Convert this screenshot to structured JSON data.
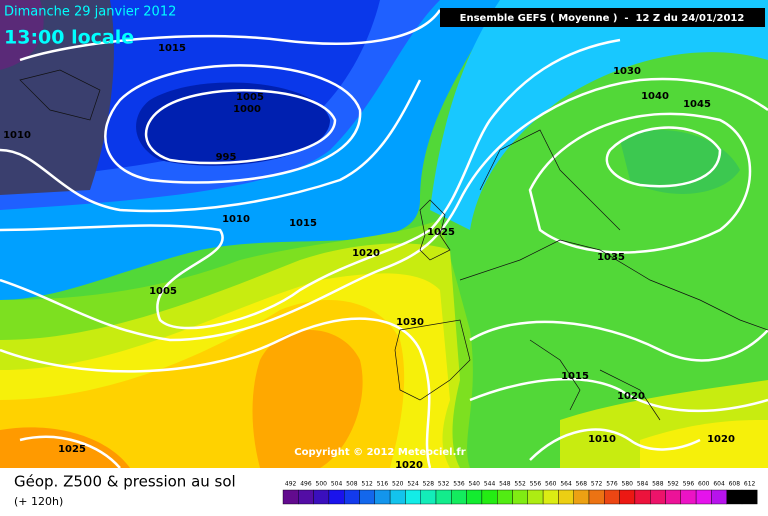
{
  "header": {
    "date": "Dimanche 29 janvier 2012",
    "time": "13:00 locale",
    "model": "Ensemble GEFS ( Moyenne )  -  12 Z du 24/01/2012"
  },
  "isobar_labels": [
    1015,
    1005,
    1000,
    995,
    1010,
    1010,
    1015,
    1020,
    1025,
    1005,
    1030,
    1030,
    1040,
    1045,
    1035,
    1015,
    1020,
    1010,
    1020,
    1025,
    1020
  ],
  "copyright": "Copyright © 2012 Meteociel.fr",
  "footer": {
    "title": "Géop. Z500 & pression au sol",
    "lead": "(+ 120h)"
  },
  "scale": {
    "ticks": [
      492,
      496,
      500,
      504,
      508,
      512,
      516,
      520,
      524,
      528,
      532,
      536,
      540,
      544,
      548,
      552,
      556,
      560,
      564,
      568,
      572,
      576,
      580,
      584,
      588,
      592,
      596,
      600,
      604,
      608,
      612
    ]
  }
}
